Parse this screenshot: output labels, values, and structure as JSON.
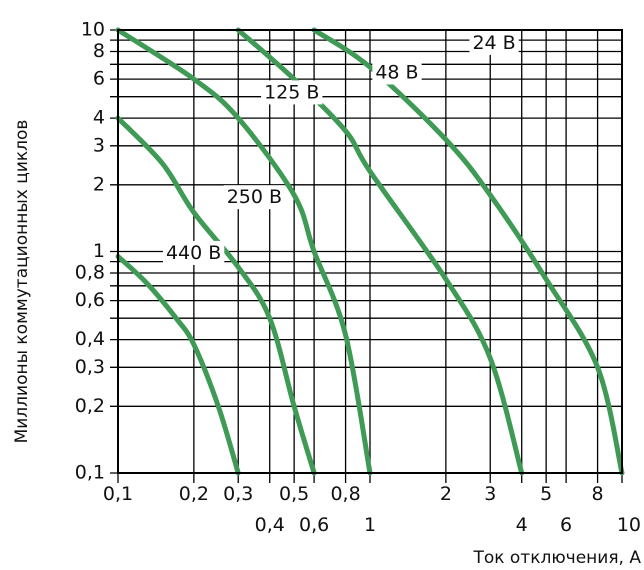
{
  "chart_data": {
    "type": "line",
    "xlabel": "Ток отключения, А",
    "ylabel": "Миллионы коммутационных циклов",
    "x_scale": "log",
    "y_scale": "log",
    "xlim": [
      0.1,
      10
    ],
    "ylim": [
      0.1,
      10
    ],
    "grid": true,
    "x_ticks": [
      0.1,
      0.2,
      0.3,
      0.4,
      0.5,
      0.6,
      0.8,
      1,
      2,
      3,
      4,
      5,
      6,
      8,
      10
    ],
    "x_tick_labels_upper": [
      {
        "x": 0.1,
        "label": "0,1"
      },
      {
        "x": 0.2,
        "label": "0,2"
      },
      {
        "x": 0.3,
        "label": "0,3"
      },
      {
        "x": 0.5,
        "label": "0,5"
      },
      {
        "x": 0.8,
        "label": "0,8"
      },
      {
        "x": 2,
        "label": "2"
      },
      {
        "x": 3,
        "label": "3"
      },
      {
        "x": 5,
        "label": "5"
      },
      {
        "x": 8,
        "label": "8"
      }
    ],
    "x_tick_labels_lower": [
      {
        "x": 0.4,
        "label": "0,4"
      },
      {
        "x": 0.6,
        "label": "0,6"
      },
      {
        "x": 1,
        "label": "1"
      },
      {
        "x": 4,
        "label": "4"
      },
      {
        "x": 6,
        "label": "6"
      },
      {
        "x": 10,
        "label": "10"
      }
    ],
    "y_ticks": [
      {
        "y": 0.1,
        "label": "0,1"
      },
      {
        "y": 0.2,
        "label": "0,2"
      },
      {
        "y": 0.3,
        "label": "0,3"
      },
      {
        "y": 0.4,
        "label": "0,4"
      },
      {
        "y": 0.6,
        "label": "0,6"
      },
      {
        "y": 0.8,
        "label": "0,8"
      },
      {
        "y": 1,
        "label": "1"
      },
      {
        "y": 2,
        "label": "2"
      },
      {
        "y": 3,
        "label": "3"
      },
      {
        "y": 4,
        "label": "4"
      },
      {
        "y": 6,
        "label": "6"
      },
      {
        "y": 8,
        "label": "8"
      },
      {
        "y": 10,
        "label": "10"
      }
    ],
    "y_gridlines": [
      0.1,
      0.2,
      0.3,
      0.4,
      0.5,
      0.6,
      0.7,
      0.8,
      0.9,
      1,
      2,
      3,
      4,
      5,
      6,
      7,
      8,
      9,
      10
    ],
    "series": [
      {
        "name": "440 В",
        "x": [
          0.1,
          0.13,
          0.17,
          0.2,
          0.25,
          0.3
        ],
        "y": [
          0.95,
          0.72,
          0.5,
          0.38,
          0.2,
          0.1
        ]
      },
      {
        "name": "250 В",
        "x": [
          0.1,
          0.15,
          0.2,
          0.3,
          0.4,
          0.5,
          0.6
        ],
        "y": [
          4,
          2.5,
          1.5,
          0.85,
          0.5,
          0.2,
          0.1
        ]
      },
      {
        "name": "125 В",
        "x": [
          0.1,
          0.2,
          0.3,
          0.5,
          0.6,
          0.8,
          1
        ],
        "y": [
          10,
          6,
          4,
          1.8,
          1,
          0.42,
          0.1
        ]
      },
      {
        "name": "48 В",
        "x": [
          0.3,
          0.5,
          0.8,
          1,
          2,
          3,
          4
        ],
        "y": [
          10,
          6,
          3.5,
          2.3,
          0.75,
          0.33,
          0.1
        ]
      },
      {
        "name": "24 В",
        "x": [
          0.6,
          1,
          2,
          3,
          5,
          8,
          10
        ],
        "y": [
          10,
          6.8,
          3.2,
          1.8,
          0.75,
          0.3,
          0.1
        ]
      }
    ],
    "series_color": "#3f9a55",
    "series_label_positions": [
      {
        "series": "440 В",
        "x": 0.155,
        "y": 0.98
      },
      {
        "series": "250 В",
        "x": 0.27,
        "y": 1.75
      },
      {
        "series": "125 В",
        "x": 0.38,
        "y": 5.2
      },
      {
        "series": "48 В",
        "x": 1.05,
        "y": 6.4
      },
      {
        "series": "24 В",
        "x": 2.55,
        "y": 8.7
      }
    ]
  }
}
